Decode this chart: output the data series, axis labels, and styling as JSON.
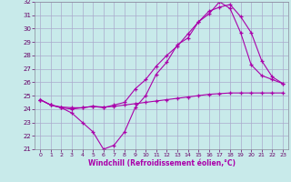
{
  "xlabel": "Windchill (Refroidissement éolien,°C)",
  "bg_color": "#c8eaea",
  "grid_color": "#aaaacc",
  "line_color": "#aa00aa",
  "xlim": [
    -0.5,
    23.5
  ],
  "ylim": [
    21,
    32
  ],
  "xticks": [
    0,
    1,
    2,
    3,
    4,
    5,
    6,
    7,
    8,
    9,
    10,
    11,
    12,
    13,
    14,
    15,
    16,
    17,
    18,
    19,
    20,
    21,
    22,
    23
  ],
  "yticks": [
    21,
    22,
    23,
    24,
    25,
    26,
    27,
    28,
    29,
    30,
    31,
    32
  ],
  "series": [
    {
      "x": [
        0,
        1,
        2,
        3,
        4,
        5,
        6,
        7,
        8,
        9,
        10,
        11,
        12,
        13,
        14,
        15,
        16,
        17,
        18,
        19,
        20,
        21,
        22,
        23
      ],
      "y": [
        24.7,
        24.3,
        24.15,
        24.1,
        24.1,
        24.2,
        24.15,
        24.2,
        24.3,
        24.4,
        24.5,
        24.6,
        24.7,
        24.8,
        24.9,
        25.0,
        25.1,
        25.15,
        25.2,
        25.2,
        25.2,
        25.2,
        25.2,
        25.2
      ]
    },
    {
      "x": [
        0,
        1,
        2,
        3,
        4,
        5,
        6,
        7,
        8,
        9,
        10,
        11,
        12,
        13,
        14,
        15,
        16,
        17,
        18,
        19,
        20,
        21,
        22,
        23
      ],
      "y": [
        24.7,
        24.3,
        24.1,
        23.7,
        23.0,
        22.3,
        21.0,
        21.3,
        22.3,
        24.1,
        25.0,
        26.6,
        27.5,
        28.8,
        29.3,
        30.5,
        31.1,
        32.0,
        31.5,
        29.7,
        27.3,
        26.5,
        26.2,
        25.9
      ]
    },
    {
      "x": [
        0,
        1,
        2,
        3,
        4,
        5,
        6,
        7,
        8,
        9,
        10,
        11,
        12,
        13,
        14,
        15,
        16,
        17,
        18,
        19,
        20,
        21,
        22,
        23
      ],
      "y": [
        24.7,
        24.3,
        24.1,
        24.0,
        24.1,
        24.2,
        24.1,
        24.3,
        24.5,
        25.5,
        26.2,
        27.2,
        28.0,
        28.7,
        29.6,
        30.5,
        31.3,
        31.6,
        31.8,
        30.9,
        29.7,
        27.6,
        26.4,
        25.9
      ]
    }
  ]
}
